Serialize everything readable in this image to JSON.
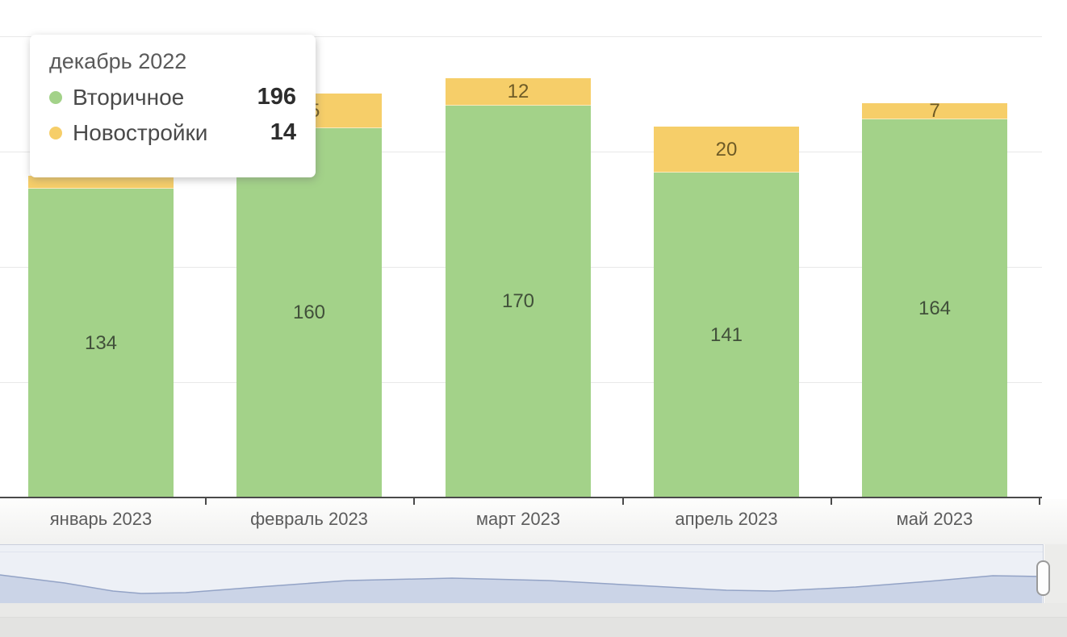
{
  "chart_data": {
    "type": "bar",
    "stacked": true,
    "categories": [
      "январь 2023",
      "февраль 2023",
      "март 2023",
      "апрель 2023",
      "май 2023"
    ],
    "series": [
      {
        "name": "Вторичное",
        "color": "#a3d289",
        "values": [
          134,
          160,
          170,
          141,
          164
        ],
        "labels": [
          "134",
          "160",
          "170",
          "141",
          "164"
        ]
      },
      {
        "name": "Новостройки",
        "color": "#f6ce69",
        "values": [
          null,
          15,
          12,
          20,
          7
        ],
        "labels": [
          "",
          "15",
          "12",
          "20",
          "7"
        ]
      }
    ],
    "ylim": [
      0,
      200
    ],
    "gridline_values": [
      50,
      100,
      150,
      200
    ],
    "grid": true,
    "legend_position": "none"
  },
  "tooltip": {
    "title": "декабрь 2022",
    "rows": [
      {
        "label": "Вторичное",
        "value": "196",
        "color": "#a3d289"
      },
      {
        "label": "Новостройки",
        "value": "14",
        "color": "#f6ce69"
      }
    ]
  },
  "navigator": {
    "background": "#edf0f6",
    "area_color": "#cbd4e7",
    "line_color": "#93a3c6",
    "area_points": [
      [
        0,
        37
      ],
      [
        80,
        47
      ],
      [
        140,
        57
      ],
      [
        175,
        60
      ],
      [
        230,
        59
      ],
      [
        320,
        52
      ],
      [
        430,
        44
      ],
      [
        560,
        41
      ],
      [
        680,
        44
      ],
      [
        790,
        50
      ],
      [
        900,
        56
      ],
      [
        960,
        57
      ],
      [
        1060,
        52
      ],
      [
        1150,
        45
      ],
      [
        1230,
        38
      ],
      [
        1293,
        39
      ]
    ]
  }
}
